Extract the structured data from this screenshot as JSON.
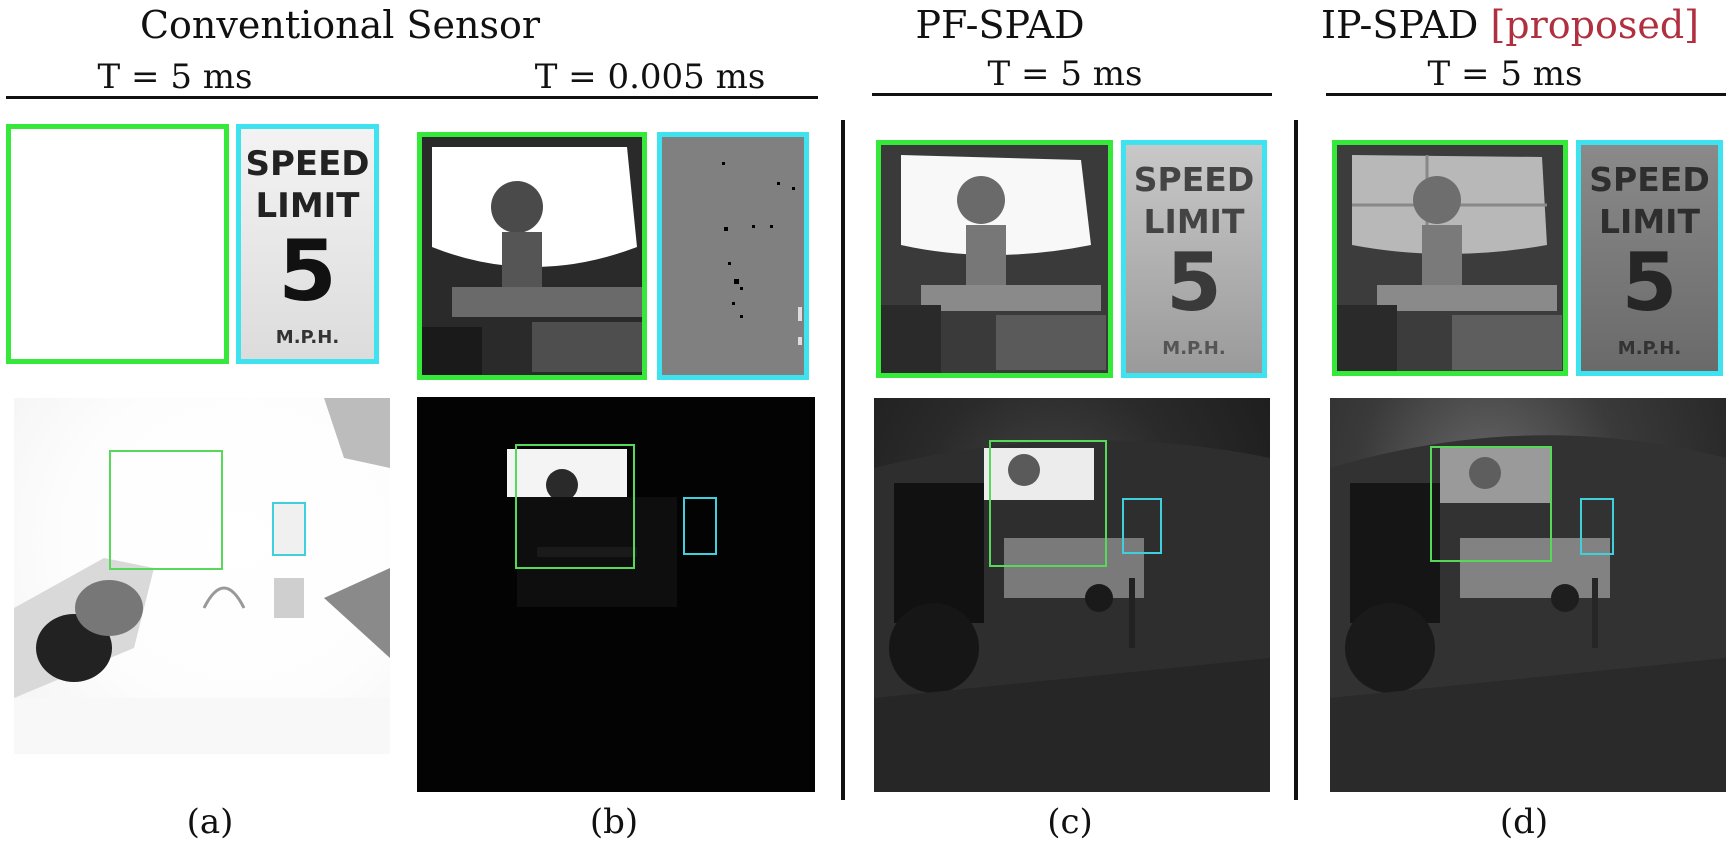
{
  "headers": {
    "conventional": "Conventional Sensor",
    "pf_spad": "PF-SPAD",
    "ip_spad": "IP-SPAD",
    "proposed": "[proposed]"
  },
  "exposures": {
    "a": "T = 5 ms",
    "b": "T = 0.005 ms",
    "c": "T = 5 ms",
    "d": "T = 5 ms"
  },
  "sign": {
    "line1": "SPEED",
    "line2": "LIMIT",
    "number": "5",
    "line3": "M.P.H."
  },
  "captions": {
    "a": "(a)",
    "b": "(b)",
    "c": "(c)",
    "d": "(d)"
  },
  "colors": {
    "green_box": "#35e83a",
    "cyan_box": "#3ee3ef",
    "proposed_text": "#b03040"
  }
}
